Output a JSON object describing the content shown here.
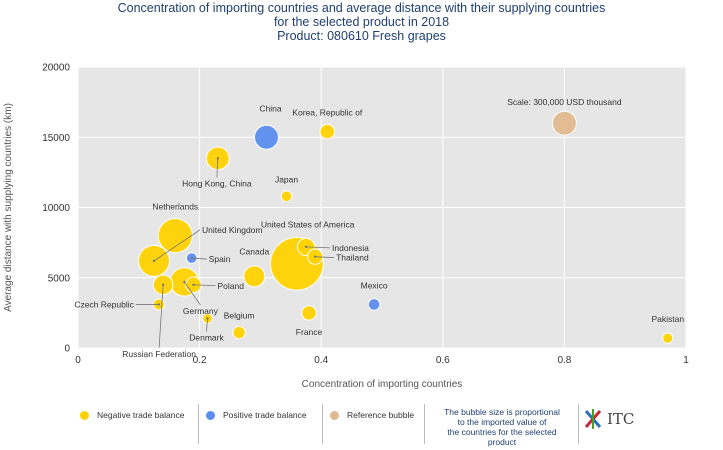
{
  "title": {
    "line1": "Concentration of importing countries and average distance with their supplying countries",
    "line2": "for the selected product in 2018",
    "line3": "Product: 080610 Fresh grapes"
  },
  "colors": {
    "negative": "#ffd200",
    "positive": "#5b8dee",
    "reference": "#e2b98e",
    "plot_background": "#e6e6e6",
    "title": "#1f3f73"
  },
  "chart_data": {
    "type": "scatter",
    "subtype": "bubble",
    "xlabel": "Concentration of importing countries",
    "ylabel": "Average distance with supplying countries (km)",
    "xlim": [
      0,
      1
    ],
    "ylim": [
      0,
      20000
    ],
    "x_ticks": [
      0,
      0.2,
      0.4,
      0.6,
      0.8,
      1
    ],
    "x_tick_labels": [
      "0",
      "0.2",
      "0.4",
      "0.6",
      "0.8",
      "1"
    ],
    "y_ticks": [
      0,
      5000,
      10000,
      15000,
      20000
    ],
    "y_tick_labels": [
      "0",
      "5000",
      "10000",
      "15000",
      "20000"
    ],
    "grid": true,
    "scale_label": "Scale: 300,000 USD thousand",
    "points": [
      {
        "label": "United States of America",
        "x": 0.36,
        "y": 6000,
        "size": 1450000,
        "balance": "negative"
      },
      {
        "label": "Netherlands",
        "x": 0.16,
        "y": 8000,
        "size": 610000,
        "balance": "negative"
      },
      {
        "label": "United Kingdom",
        "x": 0.125,
        "y": 6200,
        "size": 500000,
        "balance": "negative"
      },
      {
        "label": "Germany",
        "x": 0.175,
        "y": 4700,
        "size": 420000,
        "balance": "negative"
      },
      {
        "label": "China",
        "x": 0.31,
        "y": 15000,
        "size": 300000,
        "balance": "positive"
      },
      {
        "label": "Hong Kong, China",
        "x": 0.23,
        "y": 13500,
        "size": 270000,
        "balance": "negative"
      },
      {
        "label": "Canada",
        "x": 0.29,
        "y": 5100,
        "size": 230000,
        "balance": "negative"
      },
      {
        "label": "Russian Federation",
        "x": 0.14,
        "y": 4500,
        "size": 200000,
        "balance": "negative"
      },
      {
        "label": "Indonesia",
        "x": 0.375,
        "y": 7200,
        "size": 155000,
        "balance": "negative"
      },
      {
        "label": "Thailand",
        "x": 0.39,
        "y": 6500,
        "size": 120000,
        "balance": "negative"
      },
      {
        "label": "Poland",
        "x": 0.19,
        "y": 4500,
        "size": 125000,
        "balance": "negative"
      },
      {
        "label": "Korea, Republic of",
        "x": 0.41,
        "y": 15400,
        "size": 110000,
        "balance": "negative"
      },
      {
        "label": "France",
        "x": 0.38,
        "y": 2500,
        "size": 110000,
        "balance": "negative"
      },
      {
        "label": "Belgium",
        "x": 0.265,
        "y": 1100,
        "size": 80000,
        "balance": "negative"
      },
      {
        "label": "Czech Republic",
        "x": 0.133,
        "y": 3100,
        "size": 65000,
        "balance": "negative"
      },
      {
        "label": "Mexico",
        "x": 0.487,
        "y": 3100,
        "size": 70000,
        "balance": "positive"
      },
      {
        "label": "Japan",
        "x": 0.343,
        "y": 10800,
        "size": 60000,
        "balance": "negative"
      },
      {
        "label": "Pakistan",
        "x": 0.97,
        "y": 700,
        "size": 55000,
        "balance": "negative"
      },
      {
        "label": "Spain",
        "x": 0.187,
        "y": 6400,
        "size": 60000,
        "balance": "positive"
      },
      {
        "label": "Denmark",
        "x": 0.213,
        "y": 2100,
        "size": 50000,
        "balance": "negative"
      },
      {
        "label": "",
        "x": 0.8,
        "y": 16000,
        "size": 300000,
        "balance": "reference"
      }
    ]
  },
  "legend": {
    "negative": "Negative trade balance",
    "positive": "Positive trade balance",
    "reference": "Reference bubble",
    "note_line1": "The bubble size is proportional",
    "note_line2": "to the imported value of",
    "note_line3": "the countries for the selected",
    "note_line4": "product"
  },
  "logo": {
    "text": "ITC"
  }
}
